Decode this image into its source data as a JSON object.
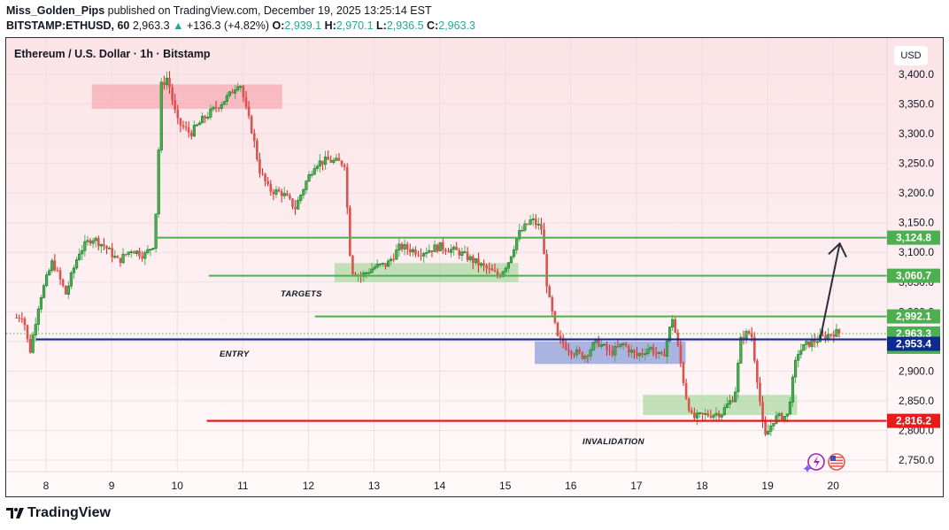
{
  "header": {
    "publisher": "Miss_Golden_Pips",
    "published_text": " published on TradingView.com, December 19, 2025 13:25:14 EST",
    "symbol": "BITSTAMP:ETHUSD, 60",
    "last": "2,963.3",
    "change_arrow": "▲",
    "change": "+136.3 (+4.82%)",
    "o_label": "O:",
    "o": "2,939.1",
    "h_label": "H:",
    "h": "2,970.1",
    "l_label": "L:",
    "l": "2,936.5",
    "c_label": "C:",
    "c": "2,963.3"
  },
  "pane": {
    "title": "Ethereum / U.S. Dollar · 1h · Bitstamp",
    "currency": "USD"
  },
  "footer": {
    "brand": "TradingView"
  },
  "annotations": {
    "targets": "TARGETS",
    "entry": "ENTRY",
    "invalidation": "INVALIDATION"
  },
  "colors": {
    "up": "#1b7a2a",
    "up_wick": "#4caf50",
    "down": "#d9534f",
    "down_wick": "#e81b1b",
    "target_line": "#4caf50",
    "entry_line": "#0d2a8f",
    "invalidation_line": "#e81b1b",
    "supply_zone": "#f7a8b0",
    "demand_zone": "#a8d8a0",
    "entry_zone": "#8e9fd8"
  },
  "chart_data": {
    "type": "candlestick",
    "title": "Ethereum / U.S. Dollar · 1h · Bitstamp",
    "xlabel": "",
    "ylabel": "USD",
    "x_ticks": [
      "8",
      "9",
      "10",
      "11",
      "12",
      "13",
      "14",
      "15",
      "16",
      "17",
      "18",
      "19",
      "20"
    ],
    "y_ticks": [
      "3,400.0",
      "3,350.0",
      "3,300.0",
      "3,250.0",
      "3,200.0",
      "3,150.0",
      "3,100.0",
      "3,050.0",
      "3,000.0",
      "2,950.0",
      "2,900.0",
      "2,850.0",
      "2,800.0",
      "2,750.0"
    ],
    "ylim": [
      2730,
      3440
    ],
    "grid": true,
    "price_levels": [
      {
        "name": "target-2",
        "value": 3124.8,
        "label": "3,124.8",
        "color": "#4caf50"
      },
      {
        "name": "target-1",
        "value": 3060.7,
        "label": "3,060.7",
        "color": "#4caf50"
      },
      {
        "name": "resistance",
        "value": 2992.1,
        "label": "2,992.1",
        "color": "#4caf50"
      },
      {
        "name": "last-price",
        "value": 2963.3,
        "label": "2,963.3",
        "countdown": "34:48",
        "color": "#4caf50"
      },
      {
        "name": "entry",
        "value": 2953.4,
        "label": "2,953.4",
        "color": "#0d2a8f"
      },
      {
        "name": "invalidation",
        "value": 2816.2,
        "label": "2,816.2",
        "color": "#e81b1b"
      }
    ],
    "zones": [
      {
        "name": "supply",
        "from_day": 8.7,
        "to_day": 11.6,
        "top": 3383,
        "bottom": 3342
      },
      {
        "name": "range-1",
        "from_day": 12.4,
        "to_day": 15.2,
        "top": 3082,
        "bottom": 3050
      },
      {
        "name": "entry-zone",
        "from_day": 15.45,
        "to_day": 17.75,
        "top": 2950,
        "bottom": 2912
      },
      {
        "name": "demand",
        "from_day": 17.1,
        "to_day": 19.45,
        "top": 2860,
        "bottom": 2826
      }
    ],
    "price_path": [
      [
        7.55,
        2990
      ],
      [
        7.65,
        2995
      ],
      [
        7.75,
        2930
      ],
      [
        7.9,
        3020
      ],
      [
        8.1,
        3085
      ],
      [
        8.3,
        3030
      ],
      [
        8.5,
        3100
      ],
      [
        8.7,
        3125
      ],
      [
        8.9,
        3110
      ],
      [
        9.1,
        3085
      ],
      [
        9.3,
        3105
      ],
      [
        9.5,
        3095
      ],
      [
        9.65,
        3115
      ],
      [
        9.7,
        3220
      ],
      [
        9.75,
        3380
      ],
      [
        9.85,
        3395
      ],
      [
        10.0,
        3320
      ],
      [
        10.2,
        3300
      ],
      [
        10.4,
        3325
      ],
      [
        10.6,
        3345
      ],
      [
        10.8,
        3365
      ],
      [
        10.95,
        3390
      ],
      [
        11.05,
        3340
      ],
      [
        11.15,
        3300
      ],
      [
        11.25,
        3240
      ],
      [
        11.4,
        3205
      ],
      [
        11.6,
        3200
      ],
      [
        11.8,
        3175
      ],
      [
        11.95,
        3215
      ],
      [
        12.1,
        3250
      ],
      [
        12.3,
        3255
      ],
      [
        12.55,
        3250
      ],
      [
        12.65,
        3070
      ],
      [
        12.8,
        3060
      ],
      [
        13.0,
        3075
      ],
      [
        13.2,
        3080
      ],
      [
        13.4,
        3110
      ],
      [
        13.7,
        3100
      ],
      [
        14.0,
        3110
      ],
      [
        14.3,
        3100
      ],
      [
        14.6,
        3080
      ],
      [
        14.9,
        3060
      ],
      [
        15.05,
        3085
      ],
      [
        15.2,
        3130
      ],
      [
        15.4,
        3155
      ],
      [
        15.55,
        3140
      ],
      [
        15.65,
        3030
      ],
      [
        15.8,
        2955
      ],
      [
        16.0,
        2935
      ],
      [
        16.2,
        2925
      ],
      [
        16.4,
        2950
      ],
      [
        16.6,
        2930
      ],
      [
        16.8,
        2945
      ],
      [
        17.0,
        2925
      ],
      [
        17.2,
        2940
      ],
      [
        17.4,
        2920
      ],
      [
        17.55,
        2990
      ],
      [
        17.65,
        2930
      ],
      [
        17.75,
        2860
      ],
      [
        17.85,
        2820
      ],
      [
        18.0,
        2825
      ],
      [
        18.3,
        2830
      ],
      [
        18.5,
        2860
      ],
      [
        18.6,
        2960
      ],
      [
        18.75,
        2965
      ],
      [
        18.85,
        2880
      ],
      [
        18.95,
        2785
      ],
      [
        19.1,
        2820
      ],
      [
        19.3,
        2825
      ],
      [
        19.35,
        2860
      ],
      [
        19.45,
        2930
      ],
      [
        19.6,
        2945
      ],
      [
        19.8,
        2955
      ],
      [
        20.0,
        2965
      ],
      [
        20.15,
        2963.3
      ]
    ]
  }
}
